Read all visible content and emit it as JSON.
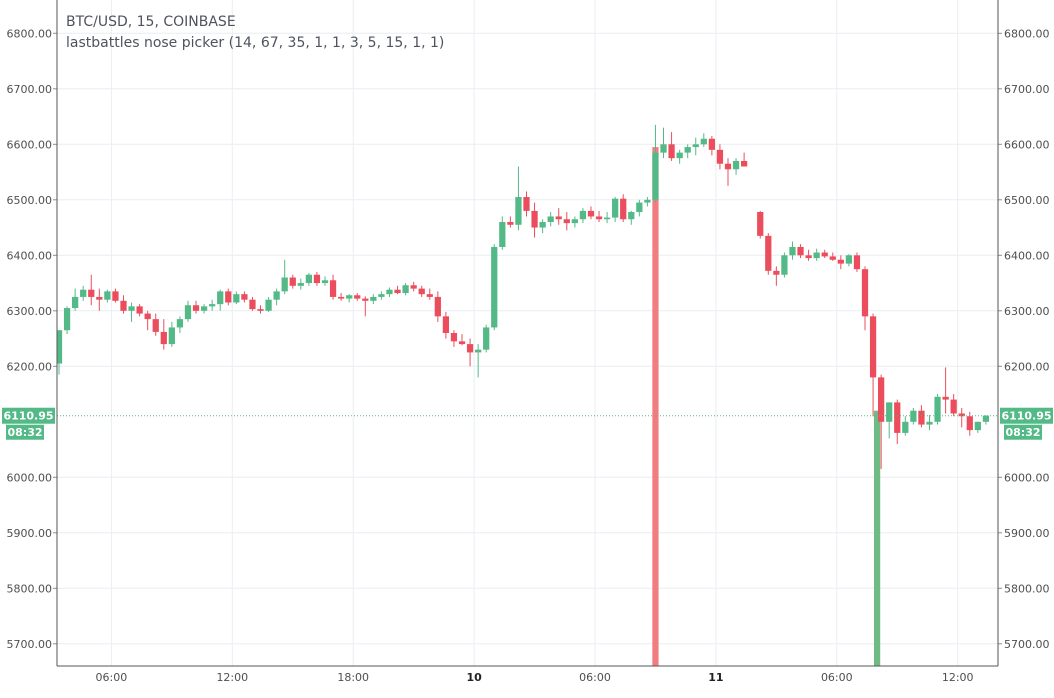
{
  "legend": {
    "symbol_line": "BTC/USD, 15, COINBASE",
    "indicator_line": "lastbattles nose picker (14, 67, 35, 1, 1, 3, 5, 15, 1, 1)"
  },
  "price_tag": {
    "price": "6110.95",
    "countdown": "08:32"
  },
  "colors": {
    "up": "#53b987",
    "down": "#eb4d5c",
    "signal_down": "#f27d80",
    "signal_up": "#6fbb83",
    "grid": "#e9eef3",
    "axis_text": "#4f4f4f",
    "price_line": "#53b987"
  },
  "chart_data": {
    "type": "candlestick",
    "title": "BTC/USD, 15, COINBASE",
    "y_range": [
      5660,
      6860
    ],
    "y_ticks": [
      "6800.00",
      "6700.00",
      "6600.00",
      "6500.00",
      "6400.00",
      "6300.00",
      "6200.00",
      "6000.00",
      "5900.00",
      "5800.00",
      "5700.00"
    ],
    "x_ticks": [
      "06:00",
      "12:00",
      "18:00",
      "10",
      "06:00",
      "11",
      "06:00",
      "12:00"
    ],
    "x_ticks_bold": [
      false,
      false,
      false,
      true,
      false,
      true,
      false,
      false
    ],
    "x_tick_hours": [
      6,
      12,
      18,
      24,
      30,
      36,
      42,
      48
    ],
    "time_range_hours": [
      3.3,
      50
    ],
    "candle_interval_hours": 0.5,
    "last_price": 6110.95,
    "candles": [
      [
        3.4,
        6205,
        6265,
        6185,
        6265
      ],
      [
        3.8,
        6265,
        6308,
        6258,
        6305
      ],
      [
        4.2,
        6305,
        6340,
        6300,
        6325
      ],
      [
        4.6,
        6325,
        6345,
        6318,
        6338
      ],
      [
        5.0,
        6338,
        6365,
        6310,
        6325
      ],
      [
        5.4,
        6325,
        6340,
        6300,
        6320
      ],
      [
        5.8,
        6320,
        6338,
        6315,
        6335
      ],
      [
        6.2,
        6335,
        6340,
        6315,
        6318
      ],
      [
        6.6,
        6318,
        6328,
        6295,
        6300
      ],
      [
        7.0,
        6300,
        6315,
        6280,
        6308
      ],
      [
        7.4,
        6308,
        6312,
        6290,
        6295
      ],
      [
        7.8,
        6295,
        6300,
        6265,
        6285
      ],
      [
        8.2,
        6285,
        6295,
        6255,
        6262
      ],
      [
        8.6,
        6262,
        6285,
        6230,
        6240
      ],
      [
        9.0,
        6240,
        6280,
        6235,
        6270
      ],
      [
        9.4,
        6270,
        6290,
        6260,
        6285
      ],
      [
        9.8,
        6285,
        6318,
        6280,
        6310
      ],
      [
        10.2,
        6310,
        6318,
        6295,
        6300
      ],
      [
        10.6,
        6300,
        6312,
        6295,
        6308
      ],
      [
        11.0,
        6308,
        6320,
        6300,
        6312
      ],
      [
        11.4,
        6312,
        6338,
        6300,
        6335
      ],
      [
        11.8,
        6335,
        6340,
        6310,
        6315
      ],
      [
        12.2,
        6315,
        6335,
        6312,
        6330
      ],
      [
        12.6,
        6330,
        6335,
        6315,
        6320
      ],
      [
        13.0,
        6320,
        6325,
        6300,
        6303
      ],
      [
        13.4,
        6303,
        6310,
        6295,
        6300
      ],
      [
        13.8,
        6300,
        6325,
        6298,
        6320
      ],
      [
        14.2,
        6320,
        6340,
        6310,
        6335
      ],
      [
        14.6,
        6335,
        6392,
        6330,
        6360
      ],
      [
        15.0,
        6360,
        6365,
        6340,
        6345
      ],
      [
        15.4,
        6345,
        6358,
        6338,
        6350
      ],
      [
        15.8,
        6350,
        6368,
        6345,
        6365
      ],
      [
        16.2,
        6365,
        6370,
        6345,
        6350
      ],
      [
        16.6,
        6350,
        6362,
        6345,
        6355
      ],
      [
        17.0,
        6355,
        6365,
        6320,
        6325
      ],
      [
        17.4,
        6325,
        6332,
        6318,
        6322
      ],
      [
        17.8,
        6322,
        6330,
        6315,
        6328
      ],
      [
        18.2,
        6328,
        6332,
        6318,
        6322
      ],
      [
        18.6,
        6322,
        6326,
        6290,
        6318
      ],
      [
        19.0,
        6318,
        6330,
        6312,
        6325
      ],
      [
        19.4,
        6325,
        6335,
        6320,
        6330
      ],
      [
        19.8,
        6330,
        6342,
        6325,
        6338
      ],
      [
        20.2,
        6338,
        6345,
        6330,
        6332
      ],
      [
        20.6,
        6332,
        6350,
        6328,
        6346
      ],
      [
        21.0,
        6346,
        6352,
        6335,
        6340
      ],
      [
        21.4,
        6340,
        6345,
        6325,
        6330
      ],
      [
        21.8,
        6330,
        6340,
        6320,
        6325
      ],
      [
        22.2,
        6325,
        6335,
        6280,
        6290
      ],
      [
        22.6,
        6290,
        6298,
        6250,
        6260
      ],
      [
        23.0,
        6260,
        6265,
        6235,
        6245
      ],
      [
        23.4,
        6245,
        6258,
        6238,
        6240
      ],
      [
        23.8,
        6240,
        6250,
        6200,
        6225
      ],
      [
        24.2,
        6225,
        6240,
        6180,
        6230
      ],
      [
        24.6,
        6230,
        6275,
        6225,
        6270
      ],
      [
        25.0,
        6270,
        6420,
        6265,
        6415
      ],
      [
        25.4,
        6415,
        6470,
        6410,
        6460
      ],
      [
        25.8,
        6460,
        6470,
        6450,
        6455
      ],
      [
        26.2,
        6455,
        6560,
        6445,
        6505
      ],
      [
        26.6,
        6505,
        6515,
        6470,
        6480
      ],
      [
        27.0,
        6480,
        6495,
        6432,
        6450
      ],
      [
        27.4,
        6450,
        6465,
        6440,
        6460
      ],
      [
        27.8,
        6460,
        6478,
        6452,
        6470
      ],
      [
        28.2,
        6470,
        6485,
        6455,
        6465
      ],
      [
        28.6,
        6465,
        6478,
        6445,
        6458
      ],
      [
        29.0,
        6458,
        6470,
        6450,
        6465
      ],
      [
        29.4,
        6465,
        6485,
        6458,
        6480
      ],
      [
        29.8,
        6480,
        6488,
        6465,
        6470
      ],
      [
        30.2,
        6470,
        6480,
        6460,
        6465
      ],
      [
        30.6,
        6465,
        6478,
        6458,
        6468
      ],
      [
        31.0,
        6468,
        6505,
        6460,
        6502
      ],
      [
        31.4,
        6502,
        6510,
        6460,
        6465
      ],
      [
        31.8,
        6465,
        6480,
        6455,
        6478
      ],
      [
        32.2,
        6478,
        6500,
        6470,
        6495
      ],
      [
        32.6,
        6495,
        6505,
        6488,
        6500
      ],
      [
        33.0,
        6500,
        6635,
        6495,
        6585
      ],
      [
        33.4,
        6585,
        6630,
        6575,
        6600
      ],
      [
        33.8,
        6600,
        6622,
        6570,
        6575
      ],
      [
        34.2,
        6575,
        6590,
        6565,
        6585
      ],
      [
        34.6,
        6585,
        6600,
        6575,
        6595
      ],
      [
        35.0,
        6595,
        6612,
        6580,
        6600
      ],
      [
        35.4,
        6600,
        6620,
        6595,
        6610
      ],
      [
        35.8,
        6610,
        6615,
        6580,
        6590
      ],
      [
        36.2,
        6590,
        6600,
        6555,
        6565
      ],
      [
        36.6,
        6565,
        6575,
        6525,
        6555
      ],
      [
        37.0,
        6555,
        6575,
        6545,
        6570
      ],
      [
        37.4,
        6570,
        6585,
        6560,
        6560
      ],
      [
        38.2,
        6478,
        6480,
        6430,
        6435
      ],
      [
        38.6,
        6435,
        6440,
        6365,
        6372
      ],
      [
        39.0,
        6372,
        6380,
        6345,
        6365
      ],
      [
        39.4,
        6365,
        6405,
        6360,
        6400
      ],
      [
        39.8,
        6400,
        6425,
        6392,
        6415
      ],
      [
        40.2,
        6415,
        6420,
        6395,
        6400
      ],
      [
        40.6,
        6400,
        6410,
        6390,
        6395
      ],
      [
        41.0,
        6395,
        6412,
        6390,
        6405
      ],
      [
        41.4,
        6405,
        6410,
        6395,
        6398
      ],
      [
        41.8,
        6398,
        6405,
        6390,
        6392
      ],
      [
        42.2,
        6392,
        6400,
        6375,
        6385
      ],
      [
        42.6,
        6385,
        6402,
        6380,
        6400
      ],
      [
        43.0,
        6400,
        6405,
        6370,
        6375
      ],
      [
        43.4,
        6375,
        6380,
        6265,
        6290
      ],
      [
        43.8,
        6290,
        6295,
        6110,
        6180
      ],
      [
        44.2,
        6180,
        6185,
        6015,
        6100
      ],
      [
        44.6,
        6100,
        6135,
        6070,
        6135
      ],
      [
        45.0,
        6135,
        6140,
        6060,
        6080
      ],
      [
        45.4,
        6080,
        6110,
        6075,
        6100
      ],
      [
        45.8,
        6100,
        6125,
        6095,
        6120
      ],
      [
        46.2,
        6120,
        6130,
        6090,
        6095
      ],
      [
        46.6,
        6095,
        6112,
        6085,
        6100
      ],
      [
        47.0,
        6100,
        6150,
        6095,
        6145
      ],
      [
        47.4,
        6145,
        6198,
        6115,
        6140
      ],
      [
        47.8,
        6140,
        6150,
        6110,
        6115
      ],
      [
        48.2,
        6115,
        6125,
        6090,
        6110
      ],
      [
        48.6,
        6110,
        6118,
        6075,
        6085
      ],
      [
        49.0,
        6085,
        6100,
        6080,
        6100
      ],
      [
        49.4,
        6100,
        6112,
        6095,
        6111
      ]
    ],
    "signal_bars": [
      {
        "t": 33.0,
        "from": 5660,
        "to": 6595,
        "direction": "down"
      },
      {
        "t": 44.0,
        "from": 5660,
        "to": 6120,
        "direction": "up"
      }
    ]
  }
}
